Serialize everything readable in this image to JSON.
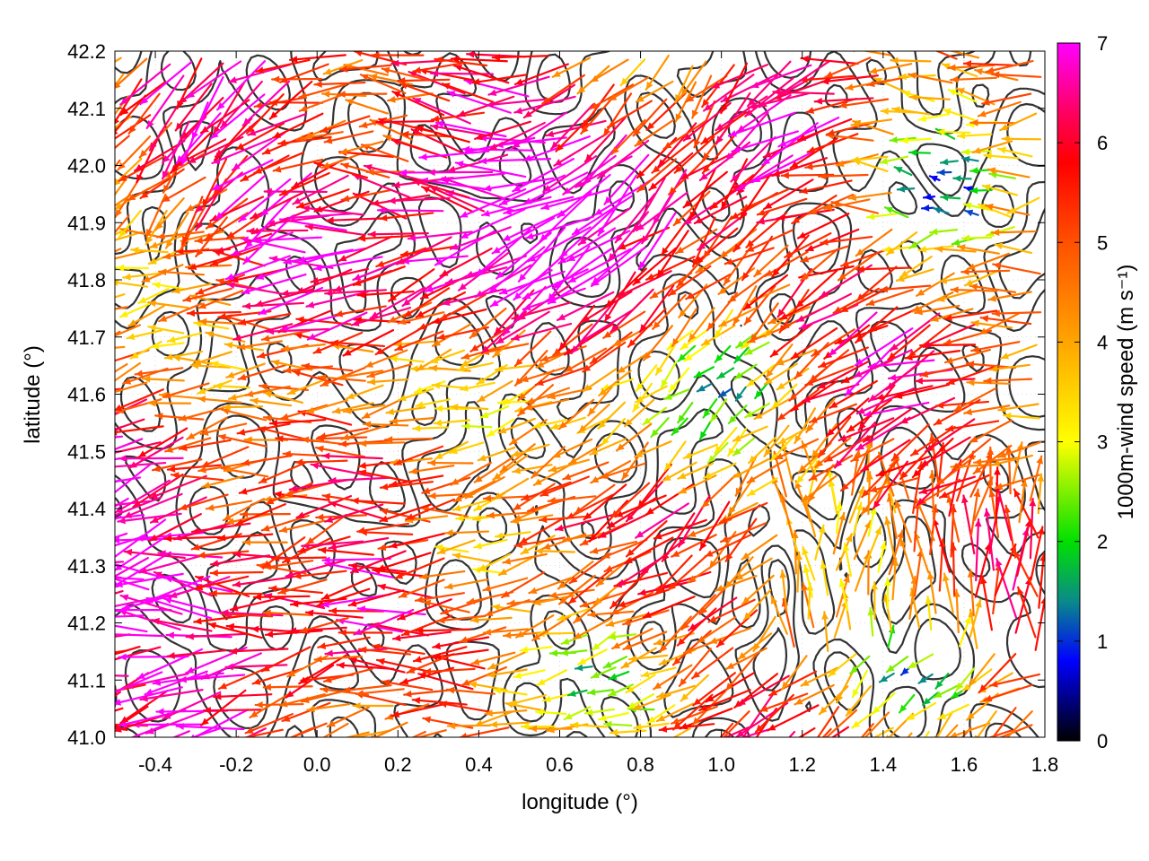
{
  "chart_data": {
    "type": "vector-field",
    "xlabel": "longitude (°)",
    "ylabel": "latitude (°)",
    "xlim": [
      -0.5,
      1.8
    ],
    "ylim": [
      41.0,
      42.2
    ],
    "xticks": [
      "-0.4",
      "-0.2",
      "0.0",
      "0.2",
      "0.4",
      "0.6",
      "0.8",
      "1.0",
      "1.2",
      "1.4",
      "1.6",
      "1.8"
    ],
    "xtick_values": [
      -0.4,
      -0.2,
      0.0,
      0.2,
      0.4,
      0.6,
      0.8,
      1.0,
      1.2,
      1.4,
      1.6,
      1.8
    ],
    "yticks": [
      "41.0",
      "41.1",
      "41.2",
      "41.3",
      "41.4",
      "41.5",
      "41.6",
      "41.7",
      "41.8",
      "41.9",
      "42.0",
      "42.1",
      "42.2"
    ],
    "ytick_values": [
      41.0,
      41.1,
      41.2,
      41.3,
      41.4,
      41.5,
      41.6,
      41.7,
      41.8,
      41.9,
      42.0,
      42.1,
      42.2
    ],
    "grid": true,
    "colorbar": {
      "label": "1000m-wind speed (m s⁻¹)",
      "min": 0,
      "max": 7,
      "ticks": [
        "0",
        "1",
        "2",
        "3",
        "4",
        "5",
        "6",
        "7"
      ],
      "tick_values": [
        0,
        1,
        2,
        3,
        4,
        5,
        6,
        7
      ],
      "stops": [
        {
          "v": 0.0,
          "c": "#000000"
        },
        {
          "v": 0.8,
          "c": "#0000ff"
        },
        {
          "v": 1.4,
          "c": "#0a8a8a"
        },
        {
          "v": 2.0,
          "c": "#00e000"
        },
        {
          "v": 3.0,
          "c": "#ffff00"
        },
        {
          "v": 4.0,
          "c": "#ffa500"
        },
        {
          "v": 5.0,
          "c": "#ff5000"
        },
        {
          "v": 5.8,
          "c": "#ff0000"
        },
        {
          "v": 6.3,
          "c": "#ff0060"
        },
        {
          "v": 7.0,
          "c": "#ff00ff"
        }
      ]
    },
    "contour_color": "#333333"
  }
}
